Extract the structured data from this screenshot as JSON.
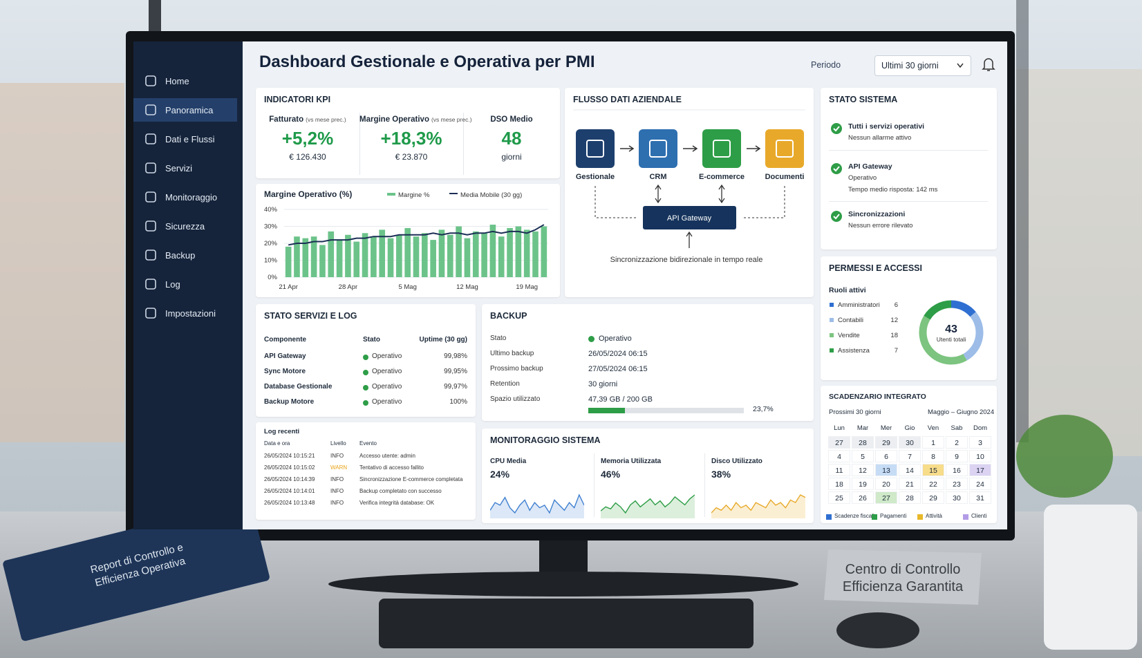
{
  "scene": {
    "book": [
      "Report di Controllo e",
      "Efficienza Operativa"
    ],
    "plate": [
      "Centro di Controllo",
      "Efficienza Garantita"
    ]
  },
  "sidebar": [
    {
      "label": "Home"
    },
    {
      "label": "Panoramica",
      "active": true
    },
    {
      "label": "Dati e Flussi"
    },
    {
      "label": "Servizi"
    },
    {
      "label": "Monitoraggio"
    },
    {
      "label": "Sicurezza"
    },
    {
      "label": "Backup"
    },
    {
      "label": "Log"
    },
    {
      "label": "Impostazioni"
    }
  ],
  "header": {
    "title": "Dashboard Gestionale e Operativa per PMI",
    "period_label": "Periodo",
    "period_value": "Ultimi 30 giorni"
  },
  "kpi": {
    "title": "INDICATORI KPI",
    "items": [
      {
        "label": "Fatturato",
        "note": "(vs mese prec.)",
        "value": "+5,2%",
        "sub": "€ 126.430"
      },
      {
        "label": "Margine Operativo",
        "note": "(vs mese prec.)",
        "value": "+18,3%",
        "sub": "€ 23.870"
      },
      {
        "label": "DSO Medio",
        "value": "48",
        "sub": "giorni"
      }
    ]
  },
  "margin_chart": {
    "type": "bar",
    "title": "Margine Operativo (%)",
    "categories": [
      "21 Apr",
      null,
      null,
      null,
      null,
      null,
      null,
      "28 Apr",
      null,
      null,
      null,
      null,
      null,
      null,
      "5 Mag",
      null,
      null,
      null,
      null,
      null,
      null,
      "12 Mag",
      null,
      null,
      null,
      null,
      null,
      null,
      "19 Mag",
      null,
      null
    ],
    "series": [
      {
        "name": "Margine %",
        "color": "#6cc38a",
        "values": [
          18,
          24,
          23,
          24,
          19,
          27,
          22,
          25,
          21,
          26,
          24,
          28,
          23,
          25,
          29,
          24,
          26,
          22,
          28,
          25,
          30,
          23,
          27,
          26,
          31,
          24,
          29,
          30,
          28,
          27,
          30
        ]
      },
      {
        "name": "Media Mobile (30 gg)",
        "color": "#1b2f55",
        "type": "line",
        "values": [
          19,
          20,
          20,
          21,
          21,
          22,
          22,
          22,
          23,
          23,
          24,
          24,
          24,
          25,
          25,
          25,
          25,
          26,
          25,
          26,
          26,
          25,
          26,
          26,
          27,
          26,
          27,
          27,
          26,
          28,
          31
        ]
      }
    ],
    "ylim": [
      0,
      40
    ],
    "yticks": [
      {
        "value": 0,
        "label": "0%"
      },
      {
        "value": 10,
        "label": "10%"
      },
      {
        "value": 20,
        "label": "20%"
      },
      {
        "value": 30,
        "label": "30%"
      },
      {
        "value": 40,
        "label": "40%"
      }
    ],
    "grid": true
  },
  "flow": {
    "title": "FLUSSO DATI AZIENDALE",
    "nodes": [
      {
        "label": "Gestionale",
        "color": "#1d3f6e"
      },
      {
        "label": "CRM",
        "color": "#2e6fb0"
      },
      {
        "label": "E-commerce",
        "color": "#2e9d47"
      },
      {
        "label": "Documenti",
        "color": "#e8a92a"
      }
    ],
    "hub": "API Gateway",
    "caption": "Sincronizzazione bidirezionale in tempo reale"
  },
  "system": {
    "title": "STATO SISTEMA",
    "items": [
      {
        "title": "Tutti i servizi operativi",
        "lines": [
          "Nessun allarme attivo"
        ]
      },
      {
        "title": "API Gateway",
        "lines": [
          "Operativo",
          "Tempo medio risposta: 142 ms"
        ]
      },
      {
        "title": "Sincronizzazioni",
        "lines": [
          "Nessun errore rilevato"
        ]
      }
    ]
  },
  "permissions": {
    "title": "PERMESSI E ACCESSI",
    "subtitle": "Ruoli attivi",
    "roles": [
      {
        "name": "Amministratori",
        "value": 6,
        "color": "#2f6fd1"
      },
      {
        "name": "Contabili",
        "value": 12,
        "color": "#9dbde8"
      },
      {
        "name": "Vendite",
        "value": 18,
        "color": "#7cc47f"
      },
      {
        "name": "Assistenza",
        "value": 7,
        "color": "#2e9d47"
      }
    ],
    "total": 43,
    "total_label": "Utenti totali"
  },
  "services": {
    "title": "STATO SERVIZI E LOG",
    "header": [
      "Componente",
      "Stato",
      "Uptime (30 gg)"
    ],
    "rows": [
      [
        "API Gateway",
        "Operativo",
        "99,98%"
      ],
      [
        "Sync Motore",
        "Operativo",
        "99,95%"
      ],
      [
        "Database Gestionale",
        "Operativo",
        "99,97%"
      ],
      [
        "Backup Motore",
        "Operativo",
        "100%"
      ]
    ]
  },
  "logs": {
    "title": "Log recenti",
    "header": [
      "Data e ora",
      "Livello",
      "Evento"
    ],
    "rows": [
      {
        "time": "26/05/2024 10:15:21",
        "level": "INFO",
        "event": "Accesso utente: admin"
      },
      {
        "time": "26/05/2024 10:15:02",
        "level": "WARN",
        "event": "Tentativo di accesso fallito",
        "level_color": "#e8a317"
      },
      {
        "time": "26/05/2024 10:14:39",
        "level": "INFO",
        "event": "Sincronizzazione E-commerce completata"
      },
      {
        "time": "26/05/2024 10:14:01",
        "level": "INFO",
        "event": "Backup completato con successo"
      },
      {
        "time": "26/05/2024 10:13:48",
        "level": "INFO",
        "event": "Verifica integrità database: OK"
      }
    ]
  },
  "backup": {
    "title": "BACKUP",
    "rows": [
      [
        "Stato",
        "Operativo"
      ],
      [
        "Ultimo backup",
        "26/05/2024 06:15"
      ],
      [
        "Prossimo backup",
        "27/05/2024 06:15"
      ],
      [
        "Retention",
        "30 giorni"
      ],
      [
        "Spazio utilizzato",
        "47,39 GB / 200 GB"
      ]
    ],
    "usage": {
      "value": 23.7,
      "label": "23,7%",
      "range": [
        0,
        100
      ]
    }
  },
  "monitoring": {
    "title": "MONITORAGGIO SISTEMA",
    "items": [
      {
        "label": "CPU Media",
        "value": "24%",
        "color": "#3f7fd0",
        "fill": "#dce8f7",
        "series": [
          22,
          25,
          24,
          27,
          23,
          21,
          24,
          26,
          22,
          25,
          23,
          24,
          21,
          26,
          24,
          22,
          25,
          23,
          28,
          24
        ]
      },
      {
        "label": "Memoria Utilizzata",
        "value": "46%",
        "color": "#2e9d47",
        "fill": "#dcefdc",
        "series": [
          42,
          44,
          43,
          46,
          44,
          41,
          45,
          47,
          44,
          46,
          48,
          45,
          47,
          44,
          46,
          49,
          47,
          45,
          48,
          50
        ]
      },
      {
        "label": "Disco Utilizzato",
        "value": "38%",
        "color": "#e8a92a",
        "fill": "#fbefd3",
        "series": [
          34,
          36,
          35,
          37,
          35,
          38,
          36,
          37,
          35,
          38,
          37,
          36,
          39,
          37,
          38,
          36,
          39,
          38,
          41,
          40
        ]
      }
    ]
  },
  "calendar": {
    "title": "SCADENZARIO INTEGRATO",
    "range": "Prossimi 30 giorni",
    "month": "Maggio – Giugno 2024",
    "days": [
      "Lun",
      "Mar",
      "Mer",
      "Gio",
      "Ven",
      "Sab",
      "Dom"
    ],
    "weeks": [
      [
        {
          "value": 27,
          "color": "#eceef1"
        },
        {
          "value": 28,
          "color": "#eceef1"
        },
        {
          "value": 29,
          "color": "#eceef1"
        },
        {
          "value": 30,
          "color": "#eceef1"
        },
        1,
        2,
        3
      ],
      [
        4,
        5,
        6,
        7,
        8,
        9,
        10
      ],
      [
        11,
        12,
        {
          "value": 13,
          "color": "#c6dcf5"
        },
        14,
        {
          "value": 15,
          "color": "#f7dc8a"
        },
        16,
        {
          "value": 17,
          "color": "#dcd3f3"
        }
      ],
      [
        18,
        19,
        20,
        21,
        22,
        23,
        24
      ],
      [
        25,
        26,
        {
          "value": 27,
          "color": "#cfe9c9"
        },
        28,
        29,
        30,
        31
      ]
    ],
    "legend": [
      {
        "name": "Scadenze fiscali",
        "color": "#2f6fd1"
      },
      {
        "name": "Pagamenti",
        "color": "#2e9d47"
      },
      {
        "name": "Attività",
        "color": "#e8b82a"
      },
      {
        "name": "Clienti",
        "color": "#b39ce6"
      }
    ]
  }
}
